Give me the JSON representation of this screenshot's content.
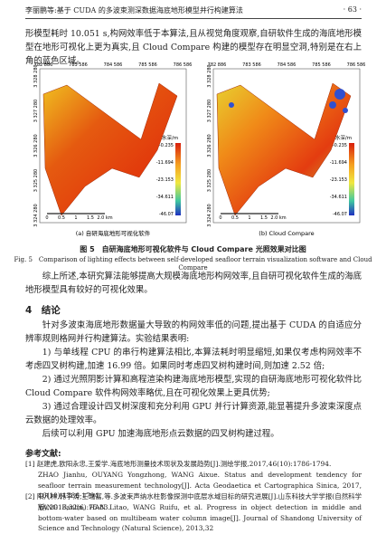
{
  "header": {
    "running_title": "李丽鹏等:基于 CUDA 的多波束测深数据海底地形模型并行构建算法",
    "page_number": "· 63 ·"
  },
  "paragraphs": [
    "形模型耗时 10.051 s,构网效率低于本算法,且从视觉角度观察,自研软件生成的海底地形模型在地形可视化上更为真实,且 Cloud Compare 构建的模型存在明显空洞,特别是在右上角的蓝色区域。"
  ],
  "figure": {
    "x_ticks": [
      "782 886",
      "783 586",
      "784 586",
      "785 586",
      "786 586"
    ],
    "y_ticks": [
      "3 328 280",
      "3 327 280",
      "3 326 280",
      "3 325 280",
      "3 324 280"
    ],
    "legend_title": "水深/m",
    "legend_values": [
      "-0.235",
      "-11.694",
      "-23.153",
      "-34.611",
      "-46.07"
    ],
    "scale_labels": [
      "0",
      "0.5",
      "1",
      "1.5",
      "2.0 km"
    ],
    "panels": [
      "(a) 自研海底地形可视化软件",
      "(b) Cloud Compare"
    ],
    "caption_cn": "图 5　自研海底地形可视化软件与 Cloud Compare 光照效果对比图",
    "caption_en": "Fig. 5　Comparison of lighting effects between self-developed seafloor terrain visualization software and Cloud Compare"
  },
  "summary": "综上所述,本研究算法能够提高大规模海底地形构网效率,且自研可视化软件生成的海底地形模型具有较好的可视化效果。",
  "section": {
    "title": "4　结论",
    "paragraphs": [
      "针对多波束海底地形数据量大导致的构网效率低的问题,提出基于 CUDA 的自适应分辨率规则格网并行构建算法。实验结果表明:",
      "1) 与单线程 CPU 的串行构建算法相比,本算法耗时明显缩短,如果仅考虑构网效率不考虑四叉树构建,加速 16.99 倍。如果同时考虑四叉树构建时间,则加速 2.52 倍;",
      "2) 通过光照阴影计算和高程渲染构建海底地形模型,实现的自研海底地形可视化软件比 Cloud Compare 软件构网效率略优,且在可视化效果上更具优势;",
      "3) 通过合理设计四叉树深度和充分利用 GPU 并行计算资源,能显著提升多波束深度点云数据的处理效率。",
      "后续可以利用 GPU 加速海底地形点云数据的四叉树构建过程。"
    ]
  },
  "references": {
    "title": "参考文献:",
    "items": [
      {
        "cn": "[1] 赵建虎,欧阳永忠,王爱学.海底地形测量技术现状及发展趋势[J].测绘学报,2017,46(10):1786-1794.",
        "en": "ZHAO Jianhu, OUYANG Yongzhong, WANG Aixue. Status and development tendency for seafloor terrain measurement technology[J]. Acta Geodaetica et Cartographica Sinica, 2017, 46(10):1786-1794."
      },
      {
        "cn": "[2] 阳凡林,韩李涛,王瑞富,等.多波束声纳水柱影像探测中底层水域目标的研究进展[J].山东科技大学学报(自然科学版),2013,32(6):75-83.",
        "en": "YANG Fanlin, HAN Litao, WANG Ruifu, et al. Progress in object detection in middle and bottom-water based on multibeam water column image[J]. Journal of Shandong University of Science and Technology (Natural Science), 2013,32"
      }
    ]
  }
}
